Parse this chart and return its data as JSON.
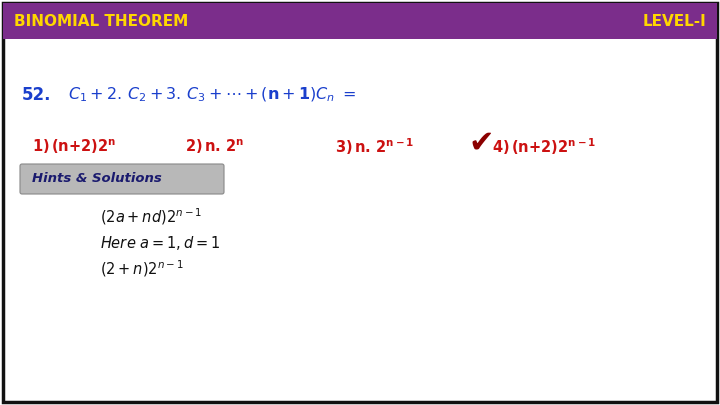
{
  "title_left": "BINOMIAL THEOREM",
  "title_right": "LEVEL-I",
  "header_bg": "#7B2D8B",
  "header_text_color": "#FFD700",
  "bg_color": "#FFFFFF",
  "border_color": "#111111",
  "question_color": "#1a3fcc",
  "options_color": "#CC1111",
  "hints_bg": "#B8B8B8",
  "hints_text_color": "#1a1a6e",
  "solution_color": "#111111",
  "checkmark_color": "#8B0000"
}
